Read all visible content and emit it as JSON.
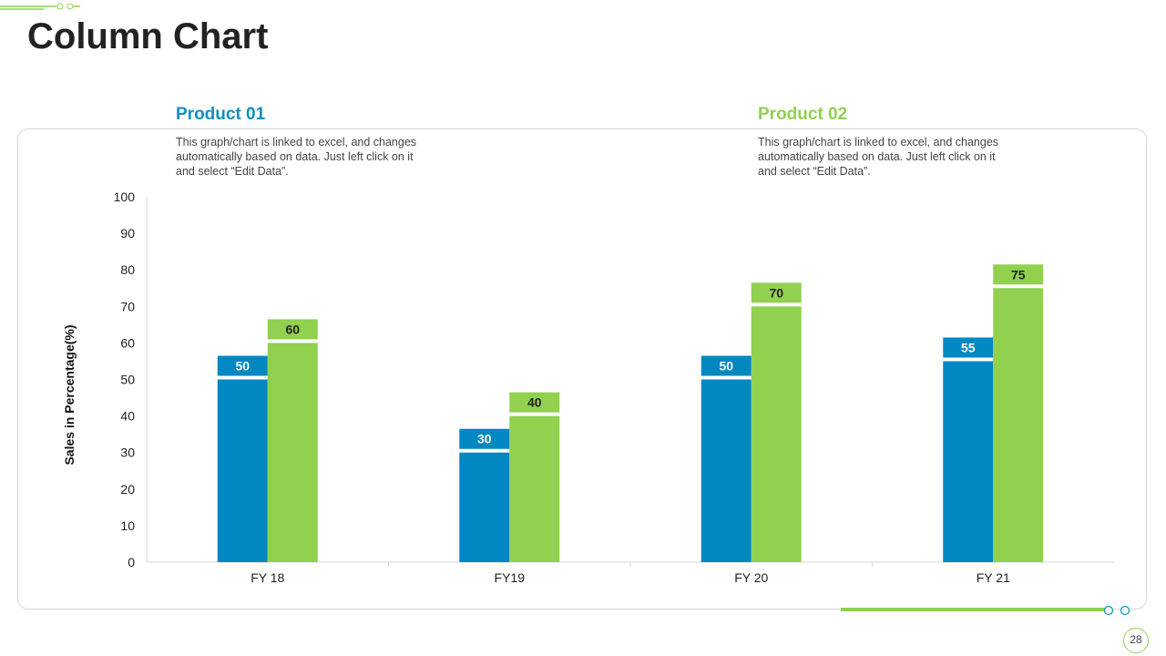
{
  "page": {
    "title": "Column Chart",
    "page_number": "28"
  },
  "colors": {
    "product1": "#0088c2",
    "product2": "#92d050",
    "accent": "#8fd14f"
  },
  "products": [
    {
      "name": "Product 01",
      "description": "This graph/chart is linked to excel, and changes automatically based on data. Just left click on it and select “Edit Data”."
    },
    {
      "name": "Product 02",
      "description": "This graph/chart is linked to excel, and changes automatically based on data. Just left click on it and select “Edit Data”."
    }
  ],
  "chart_data": {
    "type": "bar",
    "title": "",
    "xlabel": "",
    "ylabel": "Sales in Percentage(%)",
    "ylim": [
      0,
      100
    ],
    "yticks": [
      0,
      10,
      20,
      30,
      40,
      50,
      60,
      70,
      80,
      90,
      100
    ],
    "categories": [
      "FY 18",
      "FY19",
      "FY 20",
      "FY 21"
    ],
    "series": [
      {
        "name": "Product 01",
        "values": [
          50,
          30,
          50,
          55
        ]
      },
      {
        "name": "Product 02",
        "values": [
          60,
          40,
          70,
          75
        ]
      }
    ],
    "data_labels": true,
    "grid": false
  }
}
